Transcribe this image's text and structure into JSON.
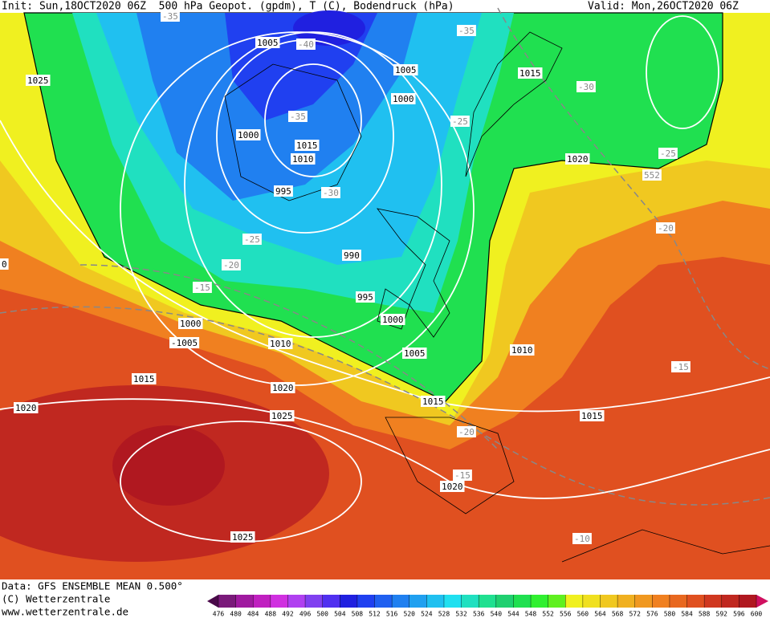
{
  "header": {
    "init": "Init: Sun,18OCT2020 06Z  500 hPa Geopot. (gpdm), T (C), Bodendruck (hPa)",
    "valid": "Valid: Mon,26OCT2020 06Z"
  },
  "footer": {
    "source": "Data: GFS ENSEMBLE MEAN 0.500°",
    "copyright": "(C) Wetterzentrale",
    "url": "www.wetterzentrale.de"
  },
  "isobar_labels": [
    "1005",
    "1025",
    "1005",
    "1000",
    "1015",
    "1000",
    "1015",
    "1010",
    "995",
    "1020",
    "990",
    "995",
    "1000",
    "1000",
    "-1005",
    "1010",
    "1005",
    "1010",
    "1015",
    "1020",
    "1015",
    "1025",
    "1015",
    "1020",
    "1020",
    "1025",
    "0"
  ],
  "temperature_labels": [
    "-35",
    "-40",
    "-35",
    "-30",
    "-35",
    "-25",
    "-30",
    "-25",
    "-25",
    "-20",
    "-20",
    "-15",
    "-15",
    "-20",
    "-15",
    "-10",
    "552"
  ],
  "colorbar": {
    "ticks": [
      476,
      480,
      484,
      488,
      492,
      496,
      500,
      504,
      508,
      512,
      516,
      520,
      524,
      528,
      532,
      536,
      540,
      544,
      548,
      552,
      556,
      560,
      564,
      568,
      572,
      576,
      580,
      584,
      588,
      592,
      596,
      600
    ],
    "colors": [
      "#4a0a4a",
      "#7a1a7a",
      "#a01aa0",
      "#c020c0",
      "#d030e0",
      "#b040f0",
      "#8040f0",
      "#5030f0",
      "#2020e0",
      "#2040f0",
      "#2060f0",
      "#2080f0",
      "#20a0f0",
      "#20c0f0",
      "#20e0f0",
      "#20e0c0",
      "#20e090",
      "#20d070",
      "#20e050",
      "#30f030",
      "#60f020",
      "#f0f020",
      "#f0e020",
      "#f0c820",
      "#f0b020",
      "#f09820",
      "#f08020",
      "#e86820",
      "#e05020",
      "#d03820",
      "#c02820",
      "#b01820",
      "#d01060"
    ]
  }
}
